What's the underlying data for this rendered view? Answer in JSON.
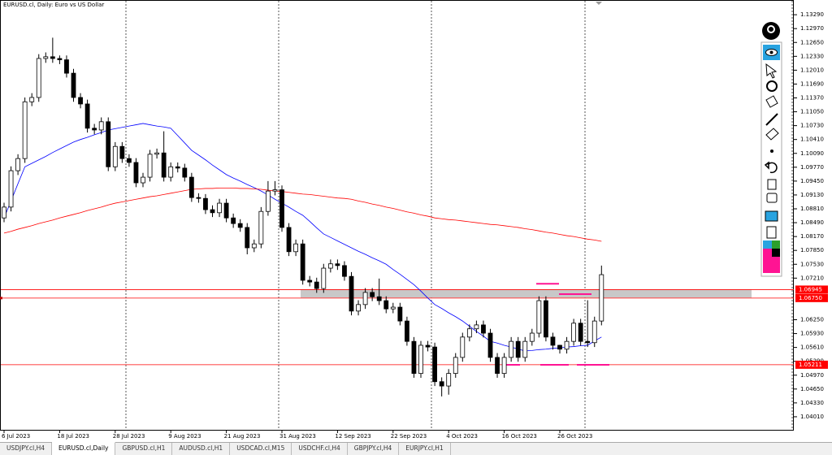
{
  "chart_data": {
    "type": "candlestick",
    "title": "EURUSD.cl, Daily: Euro vs US Dollar",
    "categories": [
      "6 Jul 2023",
      null,
      null,
      null,
      null,
      null,
      null,
      null,
      "18 Jul 2023",
      null,
      null,
      null,
      null,
      null,
      null,
      null,
      "28 Jul 2023",
      null,
      null,
      null,
      null,
      null,
      null,
      null,
      "9 Aug 2023",
      null,
      null,
      null,
      null,
      null,
      null,
      null,
      "21 Aug 2023",
      null,
      null,
      null,
      null,
      null,
      null,
      null,
      "31 Aug 2023",
      null,
      null,
      null,
      null,
      null,
      null,
      null,
      "12 Sep 2023",
      null,
      null,
      null,
      null,
      null,
      null,
      null,
      "22 Sep 2023",
      null,
      null,
      null,
      null,
      null,
      null,
      null,
      "4 Oct 2023",
      null,
      null,
      null,
      null,
      null,
      null,
      null,
      "16 Oct 2023",
      null,
      null,
      null,
      null,
      null,
      null,
      null,
      "26 Oct 2023",
      null,
      null,
      null,
      null,
      null,
      null
    ],
    "open": [
      1.086,
      1.0885,
      1.0969,
      1.0997,
      1.1128,
      1.1138,
      1.1228,
      1.1232,
      1.1228,
      1.1225,
      1.1194,
      1.1138,
      1.1123,
      1.1067,
      1.1063,
      1.1082,
      1.0978,
      1.1025,
      1.0997,
      1.0988,
      1.0941,
      1.0954,
      1.1007,
      1.101,
      1.0954,
      1.0978,
      1.0975,
      1.0954,
      1.0907,
      1.0905,
      1.0879,
      1.0872,
      1.0894,
      1.086,
      1.0847,
      1.0838,
      1.0791,
      1.08,
      1.0875,
      1.0922,
      1.0925,
      1.0838,
      1.0782,
      1.08,
      1.0716,
      1.0712,
      1.0697,
      1.0744,
      1.0754,
      1.075,
      1.0725,
      1.0645,
      1.066,
      1.0688,
      1.0678,
      1.0669,
      1.065,
      1.0654,
      1.0622,
      1.0575,
      1.0501,
      1.0566,
      1.0562,
      1.0482,
      1.0472,
      1.0501,
      1.0538,
      1.0585,
      1.0604,
      1.0613,
      1.0594,
      1.0538,
      1.0501,
      1.0538,
      1.0575,
      1.0538,
      1.0575,
      1.0594,
      1.0669,
      1.0585,
      1.0566,
      1.0557,
      1.0575,
      1.0617,
      1.0575,
      1.0572,
      1.0622
    ],
    "high": [
      1.0895,
      1.0979,
      1.1007,
      1.1138,
      1.1148,
      1.1238,
      1.1242,
      1.1276,
      1.1235,
      1.1235,
      1.1204,
      1.1148,
      1.1133,
      1.1077,
      1.1092,
      1.1092,
      1.1035,
      1.1035,
      1.1007,
      1.0998,
      1.0964,
      1.1017,
      1.102,
      1.106,
      1.0988,
      1.0988,
      1.0985,
      1.0964,
      1.0917,
      1.0915,
      1.0889,
      1.0904,
      1.0904,
      1.087,
      1.0857,
      1.0848,
      1.081,
      1.0885,
      1.0945,
      1.0945,
      1.0935,
      1.0848,
      1.081,
      1.081,
      1.0726,
      1.0722,
      1.0754,
      1.0764,
      1.0764,
      1.076,
      1.0735,
      1.067,
      1.0698,
      1.0698,
      1.072,
      1.0679,
      1.0664,
      1.0664,
      1.0632,
      1.0585,
      1.0576,
      1.0576,
      1.0572,
      1.0492,
      1.0511,
      1.0548,
      1.0595,
      1.0614,
      1.0623,
      1.0623,
      1.0604,
      1.0548,
      1.0548,
      1.0585,
      1.0585,
      1.0585,
      1.0604,
      1.0679,
      1.0679,
      1.0595,
      1.0567,
      1.0585,
      1.0627,
      1.0627,
      1.067,
      1.0632,
      1.075
    ],
    "low": [
      1.085,
      1.0875,
      1.0959,
      1.0987,
      1.1118,
      1.1128,
      1.1218,
      1.1218,
      1.1215,
      1.1184,
      1.1128,
      1.1113,
      1.1057,
      1.1053,
      1.1053,
      1.0968,
      1.0968,
      1.0987,
      1.0978,
      1.0931,
      1.0931,
      1.0944,
      1.0997,
      1.0944,
      1.0944,
      1.0965,
      1.0944,
      1.0897,
      1.0895,
      1.0869,
      1.0862,
      1.0862,
      1.085,
      1.0837,
      1.0828,
      1.0776,
      1.0781,
      1.079,
      1.0865,
      1.0912,
      1.0828,
      1.0772,
      1.0772,
      1.0706,
      1.0702,
      1.0687,
      1.0687,
      1.0734,
      1.074,
      1.0715,
      1.0635,
      1.0635,
      1.065,
      1.0668,
      1.0659,
      1.064,
      1.064,
      1.0612,
      1.0565,
      1.0491,
      1.0491,
      1.0552,
      1.0472,
      1.0448,
      1.0452,
      1.0491,
      1.0528,
      1.0575,
      1.0594,
      1.0584,
      1.0528,
      1.0491,
      1.0491,
      1.0528,
      1.0528,
      1.0528,
      1.0565,
      1.0584,
      1.0575,
      1.0556,
      1.0547,
      1.0547,
      1.0565,
      1.0565,
      1.0562,
      1.0562,
      1.0612
    ],
    "close": [
      1.0885,
      1.0969,
      1.0997,
      1.1128,
      1.1138,
      1.1228,
      1.1232,
      1.1228,
      1.1225,
      1.1194,
      1.1138,
      1.1123,
      1.1067,
      1.1063,
      1.1082,
      1.0978,
      1.1025,
      1.0997,
      1.0988,
      1.0941,
      1.0954,
      1.1007,
      1.101,
      1.0954,
      1.0978,
      1.0975,
      1.0954,
      1.0907,
      1.0905,
      1.0879,
      1.0872,
      1.0894,
      1.086,
      1.0847,
      1.0838,
      1.0791,
      1.08,
      1.0875,
      1.0922,
      1.0925,
      1.0838,
      1.0782,
      1.08,
      1.0716,
      1.0712,
      1.0697,
      1.0744,
      1.0754,
      1.075,
      1.0725,
      1.0645,
      1.066,
      1.0688,
      1.0678,
      1.0669,
      1.065,
      1.0654,
      1.0622,
      1.0575,
      1.0501,
      1.0566,
      1.0562,
      1.0482,
      1.0472,
      1.0501,
      1.0538,
      1.0585,
      1.0604,
      1.0613,
      1.0594,
      1.0538,
      1.0501,
      1.0538,
      1.0575,
      1.0538,
      1.0575,
      1.0594,
      1.0669,
      1.0585,
      1.0566,
      1.0557,
      1.0575,
      1.0617,
      1.0575,
      1.0572,
      1.0622,
      1.0729
    ],
    "up_color": "#ffffff",
    "down_color": "#000000",
    "moving_averages": [
      {
        "color": "#0000ff",
        "values": [
          1.086,
          1.0899,
          1.0939,
          1.0978,
          1.0986,
          1.0994,
          1.1002,
          1.1011,
          1.1019,
          1.1027,
          1.1035,
          1.1041,
          1.1046,
          1.1052,
          1.1057,
          1.1063,
          1.1066,
          1.1069,
          1.1072,
          1.1075,
          1.1078,
          1.1075,
          1.1072,
          1.107,
          1.1067,
          1.105,
          1.1033,
          1.1016,
          1.1005,
          1.0994,
          1.0982,
          1.0971,
          1.096,
          1.0952,
          1.0945,
          1.0937,
          1.093,
          1.0922,
          1.0913,
          1.0903,
          1.0894,
          1.0885,
          1.0875,
          1.0866,
          1.0852,
          1.0837,
          1.0823,
          1.0815,
          1.0807,
          1.0799,
          1.0791,
          1.0783,
          1.0776,
          1.0768,
          1.0761,
          1.0753,
          1.0741,
          1.073,
          1.0718,
          1.0706,
          1.0691,
          1.0675,
          1.066,
          1.0651,
          1.0641,
          1.0632,
          1.0622,
          1.061,
          1.0598,
          1.0587,
          1.0575,
          1.0571,
          1.0566,
          1.0562,
          1.0557,
          1.0553,
          1.0554,
          1.0556,
          1.0557,
          1.0559,
          1.056,
          1.0562,
          1.0563,
          1.0565,
          1.0566,
          1.0576,
          1.0585
        ]
      },
      {
        "color": "#ff0000",
        "values": [
          1.0825,
          1.0829,
          1.0834,
          1.0838,
          1.0842,
          1.0847,
          1.0851,
          1.0855,
          1.086,
          1.0864,
          1.0868,
          1.0872,
          1.0877,
          1.0881,
          1.0885,
          1.089,
          1.0894,
          1.0897,
          1.09,
          1.0903,
          1.0906,
          1.0909,
          1.0911,
          1.0914,
          1.0917,
          1.092,
          1.0923,
          1.0926,
          1.0927,
          1.0928,
          1.0928,
          1.0929,
          1.0929,
          1.0929,
          1.0928,
          1.0928,
          1.0927,
          1.0926,
          1.0924,
          1.0922,
          1.0921,
          1.0919,
          1.0917,
          1.0915,
          1.0914,
          1.0912,
          1.091,
          1.0908,
          1.0906,
          1.0905,
          1.0903,
          1.0899,
          1.0896,
          1.0892,
          1.0889,
          1.0885,
          1.0882,
          1.0878,
          1.0874,
          1.0871,
          1.0867,
          1.0864,
          1.086,
          1.0858,
          1.0856,
          1.0855,
          1.0853,
          1.0851,
          1.0849,
          1.0847,
          1.0845,
          1.0844,
          1.0842,
          1.084,
          1.0838,
          1.0835,
          1.0833,
          1.083,
          1.0827,
          1.0825,
          1.0822,
          1.0819,
          1.0817,
          1.0814,
          1.0811,
          1.0809,
          1.0806
        ]
      }
    ],
    "levels": [
      {
        "value": 1.06945,
        "label": "1.06945",
        "color": "#ff0000"
      },
      {
        "value": 1.0675,
        "label": "1.06750",
        "color": "#ff0000"
      },
      {
        "value": 1.05211,
        "label": "1.05211",
        "color": "#ff0000"
      }
    ],
    "zone": {
      "values": [
        1.06945,
        1.0676
      ],
      "color": "#c8c8c8"
    },
    "marker_lines": {
      "color": "#ff1493",
      "values": [
        1.0708,
        1.0684,
        1.0521,
        1.0521,
        1.0521
      ]
    },
    "ylim": [
      1.0369,
      1.1363
    ],
    "yticks": [
      {
        "value": 1.1329,
        "label": "1.13290"
      },
      {
        "value": 1.1297,
        "label": "1.12970"
      },
      {
        "value": 1.1265,
        "label": "1.12650"
      },
      {
        "value": 1.1233,
        "label": "1.12330"
      },
      {
        "value": 1.1201,
        "label": "1.12010"
      },
      {
        "value": 1.1169,
        "label": "1.11690"
      },
      {
        "value": 1.1137,
        "label": "1.11370"
      },
      {
        "value": 1.1105,
        "label": "1.11050"
      },
      {
        "value": 1.1073,
        "label": "1.10730"
      },
      {
        "value": 1.1041,
        "label": "1.10410"
      },
      {
        "value": 1.1009,
        "label": "1.10090"
      },
      {
        "value": 1.0977,
        "label": "1.09770"
      },
      {
        "value": 1.0945,
        "label": "1.09450"
      },
      {
        "value": 1.0913,
        "label": "1.09130"
      },
      {
        "value": 1.0881,
        "label": "1.08810"
      },
      {
        "value": 1.0849,
        "label": "1.08490"
      },
      {
        "value": 1.0817,
        "label": "1.08170"
      },
      {
        "value": 1.0785,
        "label": "1.07850"
      },
      {
        "value": 1.0753,
        "label": "1.07530"
      },
      {
        "value": 1.0721,
        "label": "1.07210"
      },
      {
        "value": 1.0625,
        "label": "1.06250"
      },
      {
        "value": 1.0593,
        "label": "1.05930"
      },
      {
        "value": 1.0561,
        "label": "1.05610"
      },
      {
        "value": 1.0529,
        "label": "1.05290"
      },
      {
        "value": 1.0497,
        "label": "1.04970"
      },
      {
        "value": 1.0465,
        "label": "1.04650"
      },
      {
        "value": 1.0433,
        "label": "1.04330"
      },
      {
        "value": 1.0401,
        "label": "1.04010"
      }
    ]
  },
  "tabs": {
    "items": [
      "USDJPY.cl,H4",
      "EURUSD.cl,Daily",
      "GBPUSD.cl,H1",
      "AUDUSD.cl,H1",
      "USDCAD.cl,M15",
      "USDCHF.cl,H4",
      "GBPJPY.cl,H4",
      "EURJPY.cl,H1"
    ],
    "active": 1
  }
}
